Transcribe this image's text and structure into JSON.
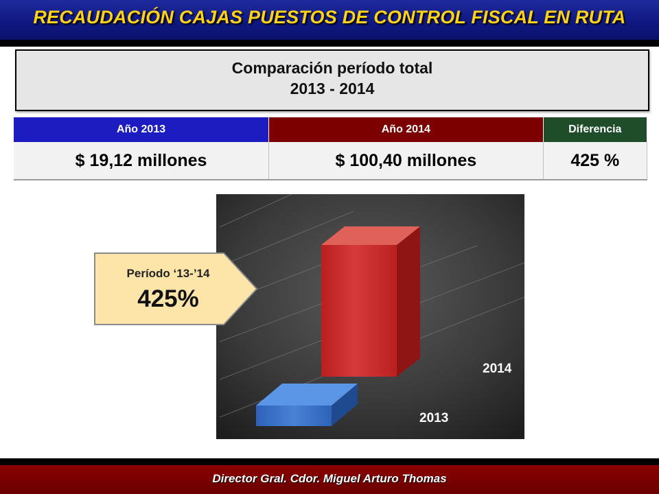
{
  "header": {
    "title": "RECAUDACIÓN CAJAS PUESTOS DE CONTROL FISCAL EN RUTA"
  },
  "comparison": {
    "line1": "Comparación período total",
    "line2": "2013 - 2014"
  },
  "table": {
    "headers": [
      "Año 2013",
      "Año 2014",
      "Diferencia"
    ],
    "values": [
      "$ 19,12 millones",
      "$ 100,40 millones",
      "425 %"
    ]
  },
  "callout": {
    "label": "Período ‘13-’14",
    "value": "425%"
  },
  "chart_data": {
    "type": "bar",
    "categories": [
      "2013",
      "2014"
    ],
    "values": [
      19.12,
      100.4
    ],
    "colors": [
      "#3a72c8",
      "#c62a2a"
    ]
  },
  "footer": {
    "text": "Director Gral.  Cdor. Miguel Arturo Thomas"
  },
  "colors": {
    "header_bg": "#0e1780",
    "header_text": "#ffd21a",
    "col_2013": "#1c1cc0",
    "col_2014": "#7c0000",
    "col_diff": "#1f4d2a",
    "footer_bg": "#6b0000"
  }
}
